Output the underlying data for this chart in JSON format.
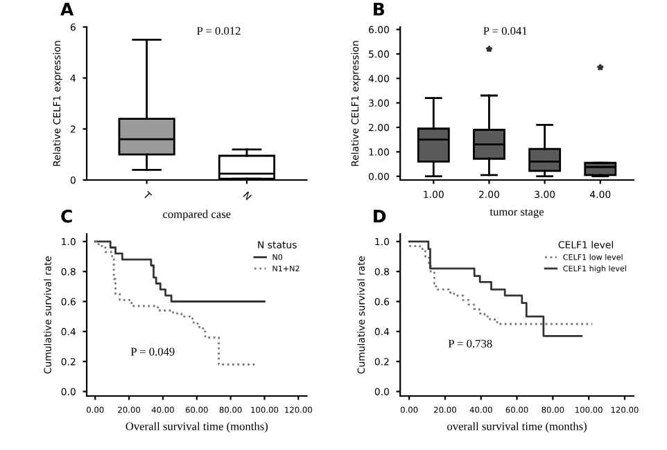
{
  "chart_data": [
    {
      "type": "box",
      "title": "A",
      "xlabel": "compared case",
      "ylabel": "Relative CELF1 expression",
      "categories": [
        "T",
        "N"
      ],
      "colors": [
        "#9a9a9a",
        "#ffffff"
      ],
      "boxes": [
        {
          "low": 0.4,
          "q1": 1.0,
          "median": 1.6,
          "q3": 2.4,
          "high": 5.5
        },
        {
          "low": 0.05,
          "q1": 0.05,
          "median": 0.25,
          "q3": 0.95,
          "high": 1.2
        }
      ],
      "ylim": [
        0,
        6
      ],
      "yticks": [
        0,
        2,
        4,
        6
      ],
      "annotations": [
        "P = 0.012"
      ]
    },
    {
      "type": "box",
      "title": "B",
      "xlabel": "tumor stage",
      "ylabel": "Relative CELF1 expression",
      "categories": [
        "1.00",
        "2.00",
        "3.00",
        "4.00"
      ],
      "colors": [
        "#5a5a5a",
        "#5a5a5a",
        "#5a5a5a",
        "#5a5a5a"
      ],
      "boxes": [
        {
          "low": 0,
          "q1": 0.6,
          "median": 1.5,
          "q3": 1.95,
          "high": 3.2
        },
        {
          "low": 0.05,
          "q1": 0.72,
          "median": 1.3,
          "q3": 1.9,
          "high": 3.3,
          "outliers": [
            5.2
          ]
        },
        {
          "low": 0,
          "q1": 0.22,
          "median": 0.6,
          "q3": 1.12,
          "high": 2.1
        },
        {
          "low": 0,
          "q1": 0.05,
          "median": 0.38,
          "q3": 0.55,
          "high": 0.55,
          "outliers": [
            4.45
          ]
        }
      ],
      "ylim": [
        -0.15,
        6.1
      ],
      "yticks": [
        {
          "value": 0,
          "label": "0.00"
        },
        {
          "value": 1,
          "label": "1.00"
        },
        {
          "value": 2,
          "label": "2.00"
        },
        {
          "value": 3,
          "label": "3.00"
        },
        {
          "value": 4,
          "label": "4.00"
        },
        {
          "value": 5,
          "label": "5.00"
        },
        {
          "value": 6,
          "label": "6.00"
        }
      ],
      "annotations": [
        "P = 0.041"
      ]
    },
    {
      "type": "step",
      "title": "C",
      "xlabel": "Overall survival time (months)",
      "ylabel": "Cumulative survival rate",
      "legend_title": "N status",
      "legend": "top right",
      "series": [
        {
          "name": "N0",
          "color": "#333333",
          "line_style": "solid",
          "x": [
            0,
            9,
            12,
            16,
            33,
            34.5,
            36,
            38.5,
            41.5,
            45,
            100
          ],
          "values": [
            1.0,
            0.96,
            0.92,
            0.88,
            0.84,
            0.76,
            0.72,
            0.68,
            0.64,
            0.6,
            0.6
          ]
        },
        {
          "name": "N1+N2",
          "color": "#777777",
          "line_style": "dotted",
          "x": [
            0,
            2,
            6,
            10,
            11,
            12,
            14.5,
            21.5,
            37,
            46,
            51,
            57.5,
            60.5,
            63.7,
            65,
            73,
            94.5
          ],
          "values": [
            1.0,
            0.97,
            0.93,
            0.89,
            0.75,
            0.65,
            0.61,
            0.57,
            0.54,
            0.52,
            0.5,
            0.46,
            0.43,
            0.4,
            0.36,
            0.18,
            0.18
          ]
        }
      ],
      "xlim": [
        -5,
        125
      ],
      "xticks": [
        {
          "value": 0,
          "label": "0.00"
        },
        {
          "value": 20,
          "label": "20.00"
        },
        {
          "value": 40,
          "label": "40.00"
        },
        {
          "value": 60,
          "label": "60.00"
        },
        {
          "value": 80,
          "label": "80.00"
        },
        {
          "value": 100,
          "label": "100.00"
        },
        {
          "value": 120,
          "label": "120.00"
        }
      ],
      "ylim": [
        -0.03,
        1.05
      ],
      "yticks": [
        {
          "value": 0,
          "label": "0.0"
        },
        {
          "value": 0.2,
          "label": "0.2"
        },
        {
          "value": 0.4,
          "label": "0.4"
        },
        {
          "value": 0.6,
          "label": "0.6"
        },
        {
          "value": 0.8,
          "label": "0.8"
        },
        {
          "value": 1,
          "label": "1.0"
        }
      ],
      "annotations": [
        "P = 0.049"
      ]
    },
    {
      "type": "step",
      "title": "D",
      "xlabel": "overall survival time (months)",
      "ylabel": "Cumulative survival rate",
      "legend_title": "CELF1 level",
      "legend": "top right",
      "series": [
        {
          "name": "CELF1 low level",
          "color": "#777777",
          "line_style": "dotted",
          "x": [
            0,
            6,
            9,
            11,
            12,
            14,
            15,
            22,
            25,
            30,
            33,
            36,
            39,
            42,
            45,
            49,
            102
          ],
          "values": [
            0.97,
            0.95,
            0.9,
            0.85,
            0.8,
            0.72,
            0.68,
            0.66,
            0.64,
            0.61,
            0.58,
            0.55,
            0.52,
            0.5,
            0.48,
            0.45,
            0.45
          ]
        },
        {
          "name": "CELF1 high level",
          "color": "#333333",
          "line_style": "solid",
          "x": [
            0,
            10.7,
            11.7,
            36.3,
            39.4,
            45.7,
            53.3,
            62.8,
            65.3,
            74.8,
            96
          ],
          "values": [
            1.0,
            0.95,
            0.82,
            0.77,
            0.73,
            0.68,
            0.64,
            0.59,
            0.5,
            0.37,
            0.37
          ]
        }
      ],
      "xlim": [
        -5,
        125
      ],
      "xticks": [
        {
          "value": 0,
          "label": "0.00"
        },
        {
          "value": 20,
          "label": "20.00"
        },
        {
          "value": 40,
          "label": "40.00"
        },
        {
          "value": 60,
          "label": "60.00"
        },
        {
          "value": 80,
          "label": "80.00"
        },
        {
          "value": 100,
          "label": "100.00"
        },
        {
          "value": 120,
          "label": "120.00"
        }
      ],
      "ylim": [
        -0.03,
        1.05
      ],
      "yticks": [
        {
          "value": 0,
          "label": "0.0"
        },
        {
          "value": 0.2,
          "label": "0.2"
        },
        {
          "value": 0.4,
          "label": "0.4"
        },
        {
          "value": 0.6,
          "label": "0.6"
        },
        {
          "value": 0.8,
          "label": "0.8"
        },
        {
          "value": 1,
          "label": "1.0"
        }
      ],
      "annotations": [
        "P = 0.738"
      ]
    }
  ]
}
